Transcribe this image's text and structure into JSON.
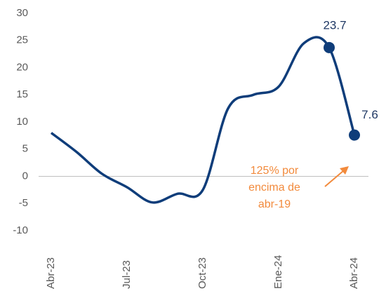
{
  "chart_data": {
    "type": "line",
    "categories": [
      "Abr-23",
      null,
      null,
      "Jul-23",
      null,
      null,
      "Oct-23",
      null,
      null,
      "Ene-24",
      null,
      null,
      "Abr-24"
    ],
    "series": [
      {
        "name": null,
        "color": "#0f3d7a",
        "values": [
          8,
          4.5,
          0.5,
          -2,
          -4.8,
          -3.2,
          -2.5,
          12.5,
          15,
          16.5,
          24.5,
          23.7,
          7.6
        ]
      }
    ],
    "ylim": [
      -10,
      30
    ],
    "yticks": [
      -10,
      -5,
      0,
      5,
      10,
      15,
      20,
      25,
      30
    ],
    "annotation": [
      "125% por",
      "encima de",
      "abr-19"
    ],
    "annotation_color": "#f28a3c"
  }
}
